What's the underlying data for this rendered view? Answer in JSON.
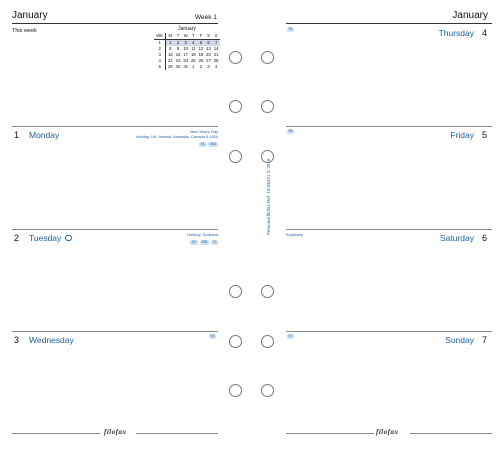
{
  "left": {
    "month": "January",
    "week": "Week 1",
    "this_week": "This week",
    "mini_calendar": {
      "title": "January",
      "headers": [
        "WK",
        "M",
        "T",
        "W",
        "T",
        "F",
        "S",
        "S"
      ],
      "rows": [
        [
          "1",
          "1",
          "2",
          "3",
          "4",
          "5",
          "6",
          "7"
        ],
        [
          "2",
          "8",
          "9",
          "10",
          "11",
          "12",
          "13",
          "14"
        ],
        [
          "3",
          "15",
          "16",
          "17",
          "18",
          "19",
          "20",
          "21"
        ],
        [
          "4",
          "22",
          "23",
          "24",
          "25",
          "26",
          "27",
          "28"
        ],
        [
          "5",
          "29",
          "30",
          "31",
          "1",
          "2",
          "3",
          "4"
        ]
      ]
    },
    "days": [
      {
        "num": "1",
        "name": "Monday",
        "note1": "New Year's Day",
        "note2": "Holiday, UK, Ireland, Australia, Canada & USA",
        "tags": [
          "01",
          "364"
        ]
      },
      {
        "num": "2",
        "name": "Tuesday",
        "note1": "Holiday, Scotland",
        "tags": [
          "02",
          "363",
          "Tt"
        ]
      },
      {
        "num": "3",
        "name": "Wednesday",
        "tags": [
          "03"
        ]
      }
    ],
    "brand": "filofax"
  },
  "right": {
    "month": "January",
    "days": [
      {
        "num": "4",
        "name": "Thursday",
        "tags": [
          "04"
        ]
      },
      {
        "num": "5",
        "name": "Friday",
        "tags": [
          "05"
        ]
      },
      {
        "num": "6",
        "name": "Saturday",
        "note1": "Epiphany"
      },
      {
        "num": "7",
        "name": "Sunday",
        "tags": [
          "07"
        ]
      }
    ],
    "brand": "filofax"
  },
  "spine": {
    "text": "Personal filofax Ref. 18-68421 © 2016"
  },
  "colors": {
    "accent": "#1e62a8",
    "tag_bg": "#cfe0f1",
    "highlight": "#d4d9e8"
  }
}
